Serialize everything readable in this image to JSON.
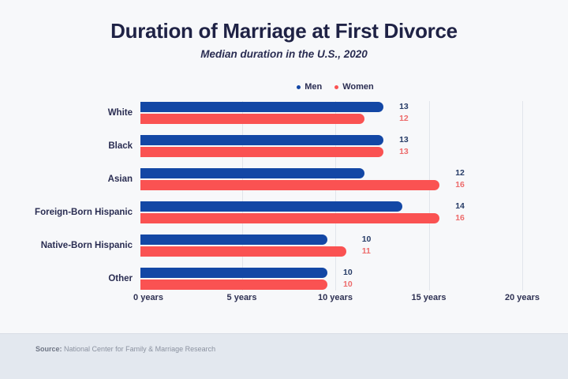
{
  "header": {
    "title": "Duration of Marriage at First Divorce",
    "subtitle": "Median duration in the U.S., 2020"
  },
  "chart_data": {
    "type": "bar",
    "orientation": "horizontal",
    "title": "Duration of Marriage at First Divorce",
    "subtitle": "Median duration in the U.S., 2020",
    "categories": [
      "White",
      "Black",
      "Asian",
      "Foreign-Born Hispanic",
      "Native-Born Hispanic",
      "Other"
    ],
    "series": [
      {
        "name": "Men",
        "color": "#1347a5",
        "label_color": "#263b66",
        "values": [
          13,
          13,
          12,
          14,
          10,
          10
        ]
      },
      {
        "name": "Women",
        "color": "#fa5252",
        "label_color": "#ed6b6b",
        "values": [
          12,
          13,
          16,
          16,
          11,
          10
        ]
      }
    ],
    "x_ticks": [
      {
        "value": 0,
        "label": "0 years"
      },
      {
        "value": 5,
        "label": "5 years"
      },
      {
        "value": 10,
        "label": "10 years"
      },
      {
        "value": 15,
        "label": "15 years"
      },
      {
        "value": 20,
        "label": "20 years"
      }
    ],
    "xlim": [
      0,
      20
    ],
    "grid": "vertical",
    "legend_position": "top",
    "value_labels": "outside-end"
  },
  "footer": {
    "source_label": "Source:",
    "source_text": "National Center for Family & Marriage Research"
  },
  "colors": {
    "background": "#f7f8fa",
    "footer_background": "#e3e8ef",
    "text_primary": "#1f2245",
    "text_category": "#2a2d52",
    "text_axis": "#2e3153",
    "gridline": "#e2e5eb"
  }
}
